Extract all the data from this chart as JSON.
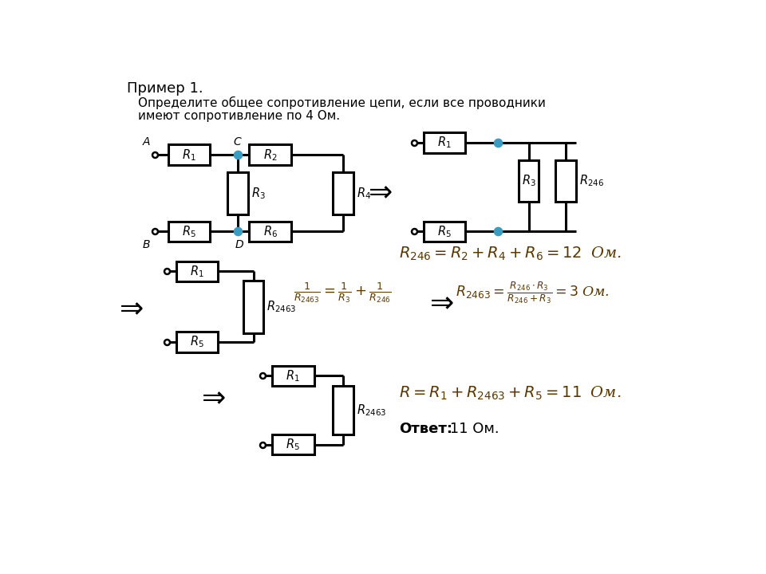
{
  "title": "Пример 1.",
  "subtitle_line1": "Определите общее сопротивление цепи, если все проводники",
  "subtitle_line2": "имеют сопротивление по 4 Ом.",
  "bg_color": "#ffffff",
  "lc": "#000000",
  "dc": "#3a9cc0",
  "fc": "#5a3800",
  "formula1": "$R_{246} = R_2 + R_4 + R_6 = 12\\;$ Ом.",
  "formula2l": "$\\frac{1}{R_{2463}} = \\frac{1}{R_3} + \\frac{1}{R_{246}}$",
  "formula2r": "$R_{2463} = \\frac{R_{246} \\cdot R_3}{R_{246} + R_3} = 3\\;$Ом.",
  "formula3": "$R = R_1 + R_{2463} + R_5 = 11\\;$ Ом.",
  "answer_bold": "Ответ:",
  "answer_rest": " 11 Ом."
}
